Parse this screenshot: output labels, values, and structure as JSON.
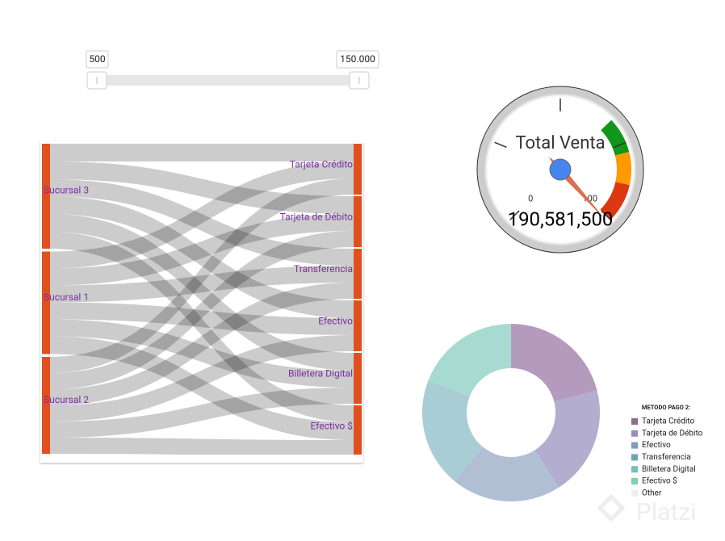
{
  "slider": {
    "low": {
      "value": 500,
      "label": "500"
    },
    "high": {
      "value": 150000,
      "label": "150.000"
    }
  },
  "chart_data": [
    {
      "type": "sankey",
      "nodes": [
        "Sucursal 3",
        "Sucursal 1",
        "Sucursal 2",
        "Tarjeta Crédito",
        "Tarjeta de Débito",
        "Transferencia",
        "Efectivo",
        "Billetera Digital",
        "Efectivo $"
      ],
      "node_color": "#e0501f",
      "label_color": "#7b2fa0",
      "link_color": "#000000",
      "links": [
        {
          "source": 0,
          "target": 3,
          "value": 22
        },
        {
          "source": 0,
          "target": 4,
          "value": 22
        },
        {
          "source": 0,
          "target": 5,
          "value": 21
        },
        {
          "source": 0,
          "target": 6,
          "value": 22
        },
        {
          "source": 0,
          "target": 7,
          "value": 22
        },
        {
          "source": 0,
          "target": 8,
          "value": 21
        },
        {
          "source": 1,
          "target": 3,
          "value": 21
        },
        {
          "source": 1,
          "target": 4,
          "value": 21
        },
        {
          "source": 1,
          "target": 5,
          "value": 21
        },
        {
          "source": 1,
          "target": 6,
          "value": 21
        },
        {
          "source": 1,
          "target": 7,
          "value": 21
        },
        {
          "source": 1,
          "target": 8,
          "value": 22
        },
        {
          "source": 2,
          "target": 3,
          "value": 20
        },
        {
          "source": 2,
          "target": 4,
          "value": 20
        },
        {
          "source": 2,
          "target": 5,
          "value": 20
        },
        {
          "source": 2,
          "target": 6,
          "value": 20
        },
        {
          "source": 2,
          "target": 7,
          "value": 20
        },
        {
          "source": 2,
          "target": 8,
          "value": 20
        }
      ]
    },
    {
      "type": "gauge",
      "label": "Total Venta",
      "value": 190581500,
      "value_labels": "190,581,500",
      "range": [
        0,
        100
      ],
      "ticks": [
        0,
        25,
        50,
        75,
        100
      ],
      "ranges": [
        {
          "from": 67,
          "to": 78,
          "color": "#109618"
        },
        {
          "from": 78,
          "to": 88,
          "color": "#ff9900"
        },
        {
          "from": 88,
          "to": 100,
          "color": "#dc3912"
        }
      ]
    },
    {
      "type": "donut",
      "legend_title": "METODO PAGO 2:",
      "categories": [
        "Tarjeta Crédito",
        "Tarjeta de Débito",
        "Efectivo",
        "Transferencia",
        "Billetera Digital",
        "Efectivo $",
        "Other"
      ],
      "values": [
        21,
        20,
        20,
        20,
        19,
        0,
        0
      ],
      "colors": [
        "#b49bbd",
        "#b3aed0",
        "#b0bfd4",
        "#a9cdd5",
        "#a7dbd2",
        "#a9e3c7",
        "#eeeeee"
      ],
      "legend_colors": [
        "#8e6b97",
        "#9a8fb7",
        "#7f9dbd",
        "#6aa7b4",
        "#76c0b3",
        "#7fd0a6",
        "#eeeeee"
      ]
    }
  ],
  "watermark": "Platzi"
}
